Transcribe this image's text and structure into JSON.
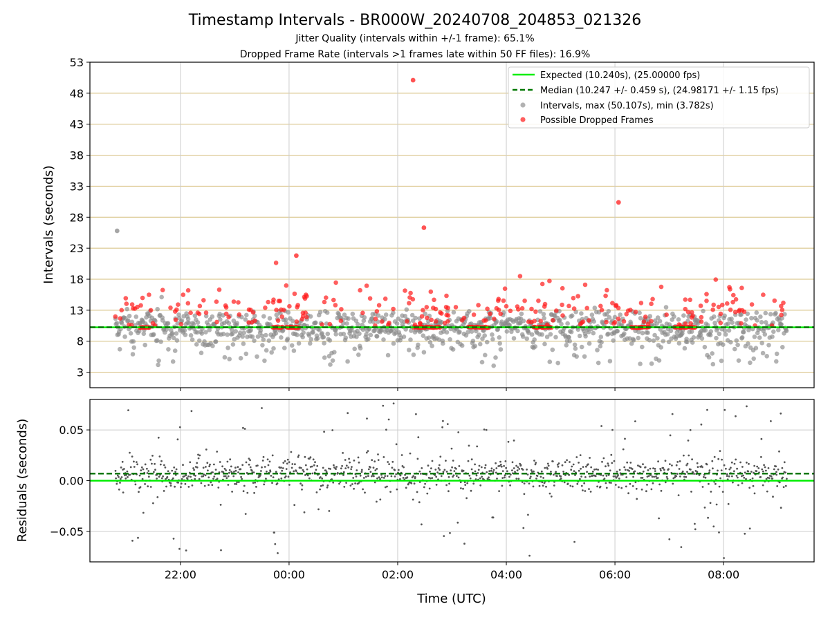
{
  "figure": {
    "title": "Timestamp Intervals - BR000W_20240708_204853_021326",
    "subtitle1": "Jitter Quality (intervals within +/-1 frame): 65.1%",
    "subtitle2": "Dropped Frame Rate (intervals >1 frames late within 50 FF files): 16.9%"
  },
  "colors": {
    "expected": "#00ee00",
    "median": "#007700",
    "intervals": "#888888",
    "dropped": "#ff1a1a",
    "grid_top": "#d4bd7a",
    "grid": "#cccccc",
    "residual": "#555555"
  },
  "chart_data": [
    {
      "type": "scatter",
      "panel": "top",
      "ylabel": "Intervals (seconds)",
      "ylim": [
        0.5,
        53
      ],
      "yticks": [
        3,
        8,
        13,
        18,
        23,
        28,
        33,
        38,
        43,
        48,
        53
      ],
      "ytick_labels": [
        "3",
        "8",
        "13",
        "18",
        "23",
        "28",
        "33",
        "38",
        "43",
        "48",
        "53"
      ],
      "grid": true,
      "legend_position": "top-right",
      "legend": [
        {
          "label": "Expected (10.240s), (25.00000 fps)",
          "kind": "solid-line"
        },
        {
          "label": "Median (10.247 +/- 0.459 s), (24.98171 +/- 1.15 fps)",
          "kind": "dashed-line"
        },
        {
          "label": "Intervals, max (50.107s), min (3.782s)",
          "kind": "gray-dot"
        },
        {
          "label": "Possible Dropped Frames",
          "kind": "red-dot"
        }
      ],
      "expected_interval": 10.24,
      "median_interval": 10.247,
      "max_interval": 50.107,
      "min_interval": 3.782,
      "notable_outliers": [
        {
          "x": "2024-07-08 20:50",
          "y": 25.8,
          "series": "Intervals"
        },
        {
          "x": "2024-07-09 00:08",
          "y": 21.8,
          "series": "Possible Dropped Frames"
        },
        {
          "x": "2024-07-09 02:17",
          "y": 50.1,
          "series": "Possible Dropped Frames"
        },
        {
          "x": "2024-07-09 02:29",
          "y": 26.3,
          "series": "Possible Dropped Frames"
        },
        {
          "x": "2024-07-09 06:04",
          "y": 30.4,
          "series": "Possible Dropped Frames"
        }
      ]
    },
    {
      "type": "scatter",
      "panel": "bottom",
      "ylabel": "Residuals (seconds)",
      "xlabel": "Time (UTC)",
      "ylim": [
        -0.08,
        0.08
      ],
      "yticks": [
        0.05,
        0.0,
        -0.05
      ],
      "ytick_labels": [
        "0.05",
        "0.00",
        "−0.05"
      ],
      "expected_residual": 0.0,
      "median_residual": 0.007,
      "grid": true,
      "xlim": [
        "2024-07-08 20:20",
        "2024-07-09 09:40"
      ],
      "xticks": [
        "2024-07-08 22:00",
        "2024-07-09 00:00",
        "2024-07-09 02:00",
        "2024-07-09 04:00",
        "2024-07-09 06:00",
        "2024-07-09 08:00"
      ],
      "xtick_labels": [
        "22:00",
        "00:00",
        "02:00",
        "04:00",
        "06:00",
        "08:00"
      ],
      "series_range": [
        "2024-07-08 20:48",
        "2024-07-09 09:10"
      ]
    }
  ]
}
